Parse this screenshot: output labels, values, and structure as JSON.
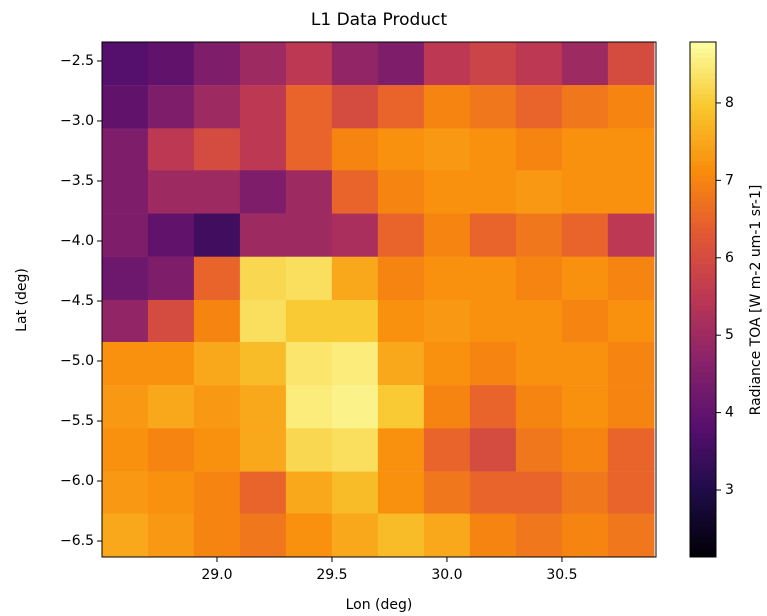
{
  "chart_data": {
    "type": "heatmap",
    "title": "L1 Data Product",
    "x_label": "Lon (deg)",
    "y_label": "Lat (deg)",
    "x": [
      28.6,
      28.8,
      29.0,
      29.2,
      29.4,
      29.6,
      29.8,
      30.0,
      30.2,
      30.4,
      30.6,
      30.8
    ],
    "y": [
      -2.52,
      -2.88,
      -3.24,
      -3.59,
      -3.95,
      -4.31,
      -4.67,
      -5.02,
      -5.38,
      -5.74,
      -6.1,
      -6.45
    ],
    "values": [
      [
        3.8,
        4.0,
        4.5,
        5.0,
        5.5,
        4.8,
        4.5,
        5.5,
        5.8,
        5.5,
        5.0,
        6.0
      ],
      [
        4.0,
        4.5,
        5.0,
        5.5,
        6.5,
        6.0,
        6.5,
        7.0,
        6.8,
        6.5,
        6.8,
        7.0
      ],
      [
        4.5,
        5.5,
        6.0,
        5.5,
        6.5,
        7.0,
        7.2,
        7.3,
        7.2,
        7.0,
        7.2,
        7.2
      ],
      [
        4.5,
        5.0,
        5.0,
        4.5,
        5.0,
        6.5,
        7.0,
        7.2,
        7.2,
        7.3,
        7.2,
        7.2
      ],
      [
        4.5,
        4.0,
        3.5,
        5.0,
        5.0,
        5.2,
        6.5,
        7.0,
        6.5,
        6.8,
        6.5,
        5.5
      ],
      [
        4.2,
        4.5,
        6.5,
        8.2,
        8.3,
        7.5,
        7.0,
        7.2,
        7.2,
        7.0,
        7.2,
        7.0
      ],
      [
        4.8,
        6.0,
        7.0,
        8.3,
        8.0,
        8.0,
        7.2,
        7.3,
        7.2,
        7.2,
        7.0,
        7.2
      ],
      [
        7.2,
        7.2,
        7.5,
        7.8,
        8.4,
        8.5,
        7.5,
        7.2,
        7.0,
        7.2,
        7.2,
        7.0
      ],
      [
        7.3,
        7.5,
        7.3,
        7.5,
        8.5,
        8.6,
        8.0,
        7.0,
        6.5,
        7.0,
        7.2,
        7.0
      ],
      [
        7.2,
        7.0,
        7.2,
        7.5,
        8.2,
        8.3,
        7.2,
        6.5,
        6.0,
        6.8,
        7.0,
        6.5
      ],
      [
        7.3,
        7.2,
        7.0,
        6.5,
        7.5,
        7.8,
        7.2,
        6.8,
        6.5,
        6.5,
        6.8,
        6.5
      ],
      [
        7.5,
        7.3,
        7.0,
        6.8,
        7.2,
        7.5,
        7.8,
        7.5,
        7.0,
        6.8,
        7.0,
        6.8
      ]
    ],
    "xlim": [
      28.5,
      30.909
    ],
    "ylim": [
      -6.633,
      -2.342
    ],
    "xticks": [
      {
        "value": 29,
        "label": "29.0"
      },
      29.5,
      {
        "value": 30,
        "label": "30.0"
      },
      30.5
    ],
    "yticks": [
      {
        "value": -2.5,
        "label": "−2.5"
      },
      {
        "value": -3,
        "label": "−3.0"
      },
      {
        "value": -3.5,
        "label": "−3.5"
      },
      {
        "value": -4,
        "label": "−4.0"
      },
      {
        "value": -4.5,
        "label": "−4.5"
      },
      {
        "value": -5,
        "label": "−5.0"
      },
      {
        "value": -5.5,
        "label": "−5.5"
      },
      {
        "value": -6,
        "label": "−6.0"
      },
      {
        "value": -6.5,
        "label": "−6.5"
      }
    ],
    "colormap": "inferno",
    "colorbar": {
      "label": "Radiance TOA [W m-2 um-1 sr-1]",
      "lim": [
        2.135,
        8.787
      ],
      "ticks": [
        3,
        4,
        5,
        6,
        7,
        8
      ]
    }
  }
}
